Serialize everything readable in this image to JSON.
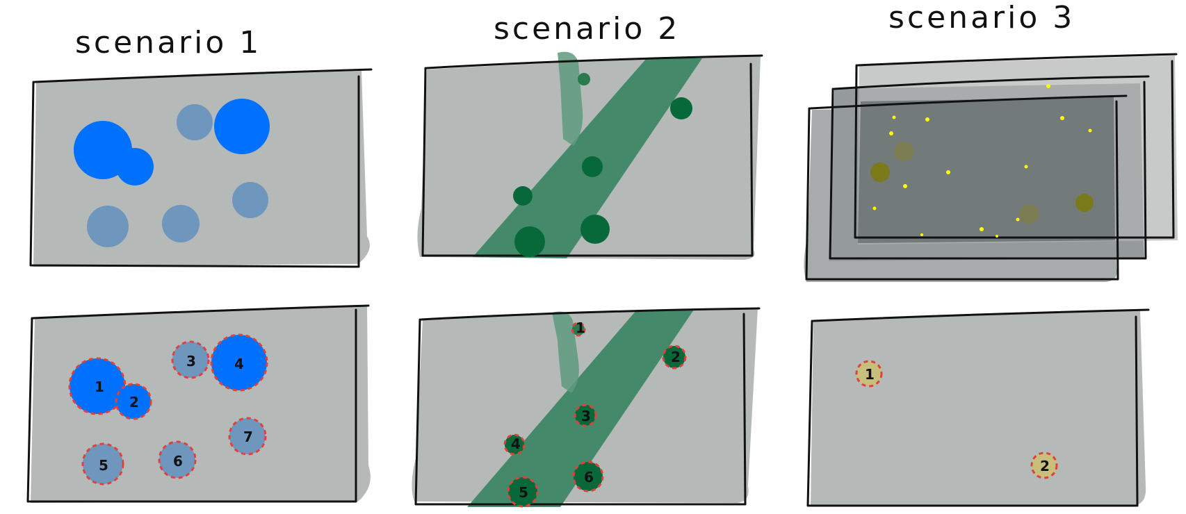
{
  "scenarios": [
    {
      "title": "scenario 1"
    },
    {
      "title": "scenario 2"
    },
    {
      "title": "scenario 3"
    }
  ],
  "colors": {
    "panel_gray": "#b5b9b8",
    "dark_gray": "#737a7a",
    "bright_blue": "#0070ff",
    "muted_blue": "#6f97be",
    "band_green": "#3e8665",
    "dark_green": "#076939",
    "olive": "#7a7a1a",
    "yellow": "#ffff00",
    "khaki": "#c9bf7c",
    "dash_red": "#e0413a"
  },
  "labels": {
    "s1": [
      "1",
      "2",
      "3",
      "4",
      "5",
      "6",
      "7"
    ],
    "s2": [
      "1",
      "2",
      "3",
      "4",
      "5",
      "6"
    ],
    "s3": [
      "1",
      "2"
    ]
  }
}
